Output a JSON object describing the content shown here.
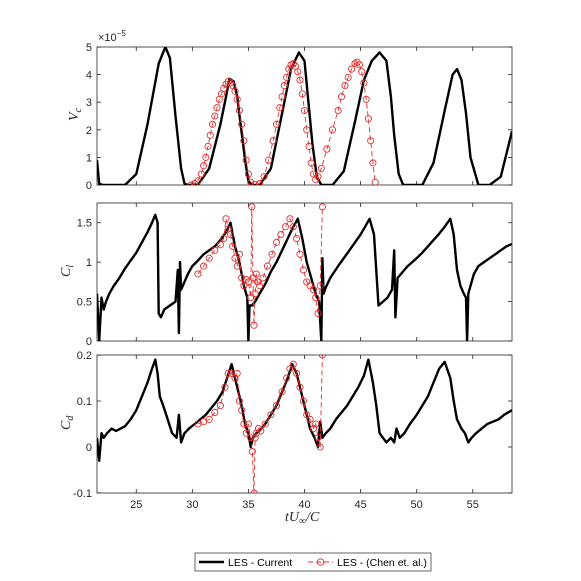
{
  "chart_data": [
    {
      "type": "line",
      "ylabel": "V_c",
      "y_multiplier": "×10^-5",
      "xlim": [
        21.5,
        58.5
      ],
      "ylim": [
        0,
        5
      ],
      "yticks": [
        0,
        1,
        2,
        3,
        4,
        5
      ],
      "ytick_labels": [
        "0",
        "1",
        "2",
        "3",
        "4",
        "5"
      ],
      "series": [
        {
          "name": "LES - Current",
          "color": "#000000",
          "x": [
            21.5,
            21.7,
            22.0,
            23.0,
            24.0,
            25.0,
            26.0,
            27.0,
            27.6,
            28.0,
            28.5,
            29.0,
            29.3,
            29.6,
            30.5,
            31.5,
            32.5,
            33.0,
            33.3,
            33.7,
            34.0,
            34.3,
            34.7,
            35.0,
            35.3,
            36.0,
            37.0,
            38.0,
            38.8,
            39.5,
            40.0,
            40.3,
            40.7,
            41.1,
            41.5,
            42.5,
            43.5,
            44.5,
            45.3,
            46.0,
            46.7,
            47.3,
            47.7,
            48.0,
            48.4,
            48.8,
            49.5,
            50.5,
            51.5,
            52.5,
            53.2,
            53.6,
            54.0,
            54.4,
            54.8,
            55.5,
            56.5,
            57.5,
            58.5
          ],
          "y": [
            0.9,
            0.05,
            0,
            0,
            0,
            0.4,
            2.2,
            4.4,
            5.0,
            4.6,
            2.5,
            0.6,
            0.05,
            0,
            0,
            0.6,
            2.2,
            3.2,
            3.85,
            3.75,
            3.2,
            2.2,
            0.9,
            0.15,
            0,
            0,
            0.6,
            2.6,
            4.2,
            4.8,
            4.5,
            3.2,
            1.5,
            0.3,
            0,
            0,
            0.5,
            2.3,
            3.8,
            4.5,
            4.8,
            4.5,
            3.2,
            1.8,
            0.4,
            0,
            0,
            0,
            0.8,
            2.7,
            4.0,
            4.2,
            3.8,
            2.6,
            1.0,
            0,
            0,
            0.3,
            1.95
          ]
        },
        {
          "name": "LES - (Chen et. al.)",
          "color": "#e03030",
          "x": [
            29.9,
            30.2,
            30.5,
            30.8,
            31.0,
            31.2,
            31.4,
            31.6,
            31.8,
            32.0,
            32.2,
            32.4,
            32.6,
            32.8,
            33.0,
            33.2,
            33.4,
            33.6,
            33.8,
            34.0,
            34.2,
            34.4,
            34.6,
            34.8,
            35.0,
            35.2,
            35.6,
            36.0,
            36.4,
            36.8,
            37.2,
            37.5,
            37.8,
            38.0,
            38.2,
            38.4,
            38.6,
            38.8,
            39.0,
            39.2,
            39.4,
            39.6,
            39.8,
            40.0,
            40.2,
            40.4,
            40.6,
            40.8,
            41.0,
            41.2,
            41.5,
            42.0,
            42.5,
            43.0,
            43.3,
            43.6,
            43.9,
            44.2,
            44.5,
            44.7,
            44.9,
            45.1,
            45.3,
            45.5,
            45.7,
            45.9,
            46.1,
            46.3
          ],
          "y": [
            0,
            0.05,
            0.15,
            0.4,
            0.7,
            1.0,
            1.4,
            1.8,
            2.2,
            2.5,
            2.8,
            3.1,
            3.3,
            3.5,
            3.65,
            3.75,
            3.7,
            3.6,
            3.4,
            3.1,
            2.7,
            2.2,
            1.6,
            0.9,
            0.4,
            0.1,
            0.02,
            0.05,
            0.3,
            0.9,
            1.6,
            2.2,
            2.8,
            3.2,
            3.6,
            3.9,
            4.2,
            4.35,
            4.4,
            4.3,
            4.1,
            3.8,
            3.3,
            2.7,
            2.0,
            1.4,
            0.8,
            0.4,
            0.2,
            0.3,
            0.6,
            1.3,
            2.0,
            2.7,
            3.2,
            3.6,
            3.9,
            4.2,
            4.4,
            4.45,
            4.35,
            4.1,
            3.7,
            3.1,
            2.4,
            1.6,
            0.8,
            0.1
          ]
        }
      ]
    },
    {
      "type": "line",
      "ylabel": "C_l",
      "xlim": [
        21.5,
        58.5
      ],
      "ylim": [
        0,
        1.75
      ],
      "yticks": [
        0,
        0.5,
        1,
        1.5
      ],
      "ytick_labels": [
        "0",
        "0.5",
        "1",
        "1.5"
      ],
      "series": [
        {
          "name": "LES - Current",
          "color": "#000000",
          "x": [
            21.5,
            21.7,
            21.9,
            22.1,
            22.3,
            22.6,
            23.0,
            23.5,
            24.0,
            24.5,
            25.0,
            25.5,
            26.0,
            26.4,
            26.7,
            26.9,
            27.0,
            27.2,
            27.5,
            28.0,
            28.5,
            28.7,
            28.8,
            28.9,
            29.0,
            29.3,
            29.6,
            30.0,
            30.5,
            31.0,
            31.5,
            32.0,
            32.5,
            33.0,
            33.4,
            33.8,
            34.2,
            34.6,
            34.9,
            35.0,
            35.1,
            35.3,
            35.6,
            36.0,
            36.5,
            37.0,
            37.5,
            38.0,
            38.5,
            39.0,
            39.4,
            39.8,
            40.2,
            40.6,
            41.0,
            41.3,
            41.5,
            41.6,
            41.7,
            41.9,
            42.3,
            43.0,
            43.5,
            44.0,
            44.5,
            45.0,
            45.4,
            45.8,
            46.2,
            46.6,
            47.0,
            47.4,
            47.8,
            48.0,
            48.1,
            48.3,
            48.6,
            48.9,
            49.2,
            49.6,
            50.0,
            50.5,
            51.0,
            51.5,
            52.0,
            52.5,
            53.0,
            53.3,
            53.6,
            53.9,
            54.2,
            54.4,
            54.5,
            54.6,
            54.8,
            55.1,
            55.5,
            56.0,
            56.5,
            57.0,
            57.5,
            58.0,
            58.5
          ],
          "y": [
            0.6,
            0.0,
            0.55,
            0.4,
            0.5,
            0.6,
            0.7,
            0.8,
            0.92,
            1.02,
            1.12,
            1.25,
            1.38,
            1.5,
            1.6,
            1.5,
            0.35,
            0.3,
            0.4,
            0.45,
            0.5,
            0.9,
            0.1,
            1.0,
            0.65,
            0.75,
            0.85,
            0.95,
            1.02,
            1.1,
            1.15,
            1.2,
            1.28,
            1.38,
            1.5,
            1.2,
            1.0,
            0.7,
            0.55,
            0.0,
            0.45,
            0.45,
            0.5,
            0.6,
            0.72,
            0.88,
            1.0,
            1.15,
            1.3,
            1.45,
            1.55,
            1.3,
            1.0,
            0.8,
            0.6,
            0.5,
            0.0,
            1.05,
            0.6,
            0.68,
            0.8,
            0.95,
            1.05,
            1.15,
            1.25,
            1.35,
            1.45,
            1.55,
            1.35,
            0.45,
            0.5,
            0.55,
            0.65,
            1.15,
            0.3,
            0.8,
            0.85,
            0.9,
            0.95,
            1.0,
            1.05,
            1.12,
            1.2,
            1.28,
            1.36,
            1.45,
            1.55,
            1.35,
            0.9,
            0.7,
            0.6,
            0.55,
            0.0,
            0.6,
            0.7,
            0.85,
            0.95,
            1.0,
            1.05,
            1.1,
            1.15,
            1.2,
            1.23
          ]
        },
        {
          "name": "LES - (Chen et. al.)",
          "color": "#e03030",
          "x": [
            30.5,
            31.0,
            31.5,
            32.0,
            32.5,
            32.8,
            33.0,
            33.2,
            33.4,
            33.6,
            33.8,
            34.0,
            34.2,
            34.4,
            34.6,
            34.8,
            35.0,
            35.2,
            35.3,
            35.4,
            35.5,
            35.6,
            35.7,
            35.8,
            36.0,
            36.3,
            36.7,
            37.1,
            37.5,
            37.9,
            38.3,
            38.7,
            39.0,
            39.3,
            39.6,
            39.9,
            40.2,
            40.5,
            40.8,
            41.0,
            41.2,
            41.4,
            41.6
          ],
          "y": [
            0.85,
            0.95,
            1.05,
            1.15,
            1.22,
            1.3,
            1.55,
            1.42,
            1.35,
            1.2,
            1.05,
            0.95,
            1.1,
            0.8,
            0.7,
            0.78,
            0.75,
            0.55,
            1.7,
            0.8,
            0.2,
            0.6,
            0.85,
            0.75,
            0.7,
            0.8,
            0.95,
            1.1,
            1.25,
            1.35,
            1.45,
            1.55,
            1.45,
            1.3,
            1.1,
            0.9,
            0.75,
            0.7,
            0.65,
            0.55,
            0.35,
            0.7,
            1.7
          ]
        }
      ]
    },
    {
      "type": "line",
      "ylabel": "C_d",
      "xlabel": "tU_∞/C",
      "xlim": [
        21.5,
        58.5
      ],
      "ylim": [
        -0.1,
        0.2
      ],
      "xticks": [
        25,
        30,
        35,
        40,
        45,
        50,
        55
      ],
      "xtick_labels": [
        "25",
        "30",
        "35",
        "40",
        "45",
        "50",
        "55"
      ],
      "yticks": [
        -0.1,
        0,
        0.1,
        0.2
      ],
      "ytick_labels": [
        "-0.1",
        "0",
        "0.1",
        "0.2"
      ],
      "series": [
        {
          "name": "LES - Current",
          "color": "#000000",
          "x": [
            21.5,
            21.7,
            21.9,
            22.1,
            22.4,
            22.8,
            23.2,
            23.6,
            24.0,
            24.5,
            25.0,
            25.5,
            26.0,
            26.4,
            26.7,
            26.9,
            27.1,
            27.4,
            27.8,
            28.2,
            28.6,
            28.8,
            29.0,
            29.3,
            29.7,
            30.2,
            30.7,
            31.2,
            31.7,
            32.2,
            32.7,
            33.1,
            33.5,
            33.9,
            34.3,
            34.7,
            35.0,
            35.2,
            35.4,
            35.7,
            36.0,
            36.5,
            37.0,
            37.5,
            38.0,
            38.5,
            38.9,
            39.3,
            39.7,
            40.1,
            40.5,
            40.9,
            41.2,
            41.4,
            41.6,
            41.9,
            42.3,
            42.8,
            43.3,
            43.8,
            44.3,
            44.8,
            45.3,
            45.7,
            46.1,
            46.4,
            46.7,
            47.0,
            47.3,
            47.7,
            48.0,
            48.2,
            48.5,
            48.9,
            49.4,
            50.0,
            50.5,
            51.0,
            51.5,
            52.0,
            52.5,
            53.0,
            53.3,
            53.6,
            54.0,
            54.3,
            54.6,
            54.9,
            55.3,
            55.8,
            56.3,
            56.8,
            57.3,
            57.8,
            58.5
          ],
          "y": [
            0.02,
            -0.03,
            0.03,
            0.02,
            0.03,
            0.04,
            0.035,
            0.04,
            0.045,
            0.06,
            0.08,
            0.11,
            0.14,
            0.17,
            0.19,
            0.16,
            0.11,
            0.09,
            0.06,
            0.03,
            0.02,
            0.07,
            0.01,
            0.03,
            0.04,
            0.05,
            0.06,
            0.07,
            0.085,
            0.1,
            0.12,
            0.15,
            0.18,
            0.14,
            0.1,
            0.05,
            0.03,
            0.0,
            0.02,
            0.03,
            0.035,
            0.05,
            0.07,
            0.09,
            0.12,
            0.15,
            0.18,
            0.16,
            0.12,
            0.08,
            0.04,
            0.02,
            0.0,
            0.055,
            0.02,
            0.03,
            0.04,
            0.06,
            0.075,
            0.09,
            0.11,
            0.13,
            0.155,
            0.19,
            0.14,
            0.09,
            0.03,
            0.02,
            0.01,
            0.02,
            0.01,
            0.04,
            0.02,
            0.03,
            0.05,
            0.07,
            0.09,
            0.11,
            0.14,
            0.17,
            0.185,
            0.15,
            0.1,
            0.06,
            0.04,
            0.03,
            0.01,
            0.02,
            0.03,
            0.04,
            0.05,
            0.055,
            0.06,
            0.07,
            0.08
          ]
        },
        {
          "name": "LES - (Chen et. al.)",
          "color": "#e03030",
          "x": [
            30.5,
            31.0,
            31.5,
            32.0,
            32.5,
            32.9,
            33.2,
            33.5,
            33.8,
            34.0,
            34.2,
            34.4,
            34.6,
            34.8,
            35.0,
            35.2,
            35.35,
            35.5,
            35.6,
            35.7,
            35.9,
            36.1,
            36.5,
            37.0,
            37.5,
            38.0,
            38.4,
            38.7,
            39.0,
            39.3,
            39.6,
            39.9,
            40.2,
            40.5,
            40.8,
            41.0,
            41.2,
            41.4,
            41.6
          ],
          "y": [
            0.05,
            0.055,
            0.06,
            0.075,
            0.09,
            0.13,
            0.16,
            0.16,
            0.15,
            0.16,
            0.1,
            0.08,
            0.05,
            0.03,
            0.05,
            0.02,
            -0.01,
            -0.1,
            0.02,
            0.03,
            0.04,
            0.035,
            0.05,
            0.07,
            0.09,
            0.12,
            0.15,
            0.17,
            0.18,
            0.16,
            0.13,
            0.1,
            0.07,
            0.06,
            0.04,
            0.05,
            0.02,
            0.0,
            0.2
          ]
        }
      ]
    }
  ],
  "legend": {
    "placement": "bottom-center",
    "entries": [
      "LES - Current",
      "LES - (Chen et. al.)"
    ]
  },
  "labels": {
    "vc_multiplier": "×10",
    "vc_exponent": "−5",
    "vc_ylabel_main": "V",
    "vc_ylabel_sub": "c",
    "cl_ylabel_main": "C",
    "cl_ylabel_sub": "l",
    "cd_ylabel_main": "C",
    "cd_ylabel_sub": "d",
    "xlabel_main": "tU",
    "xlabel_sub": "∞",
    "xlabel_tail": "/C"
  }
}
